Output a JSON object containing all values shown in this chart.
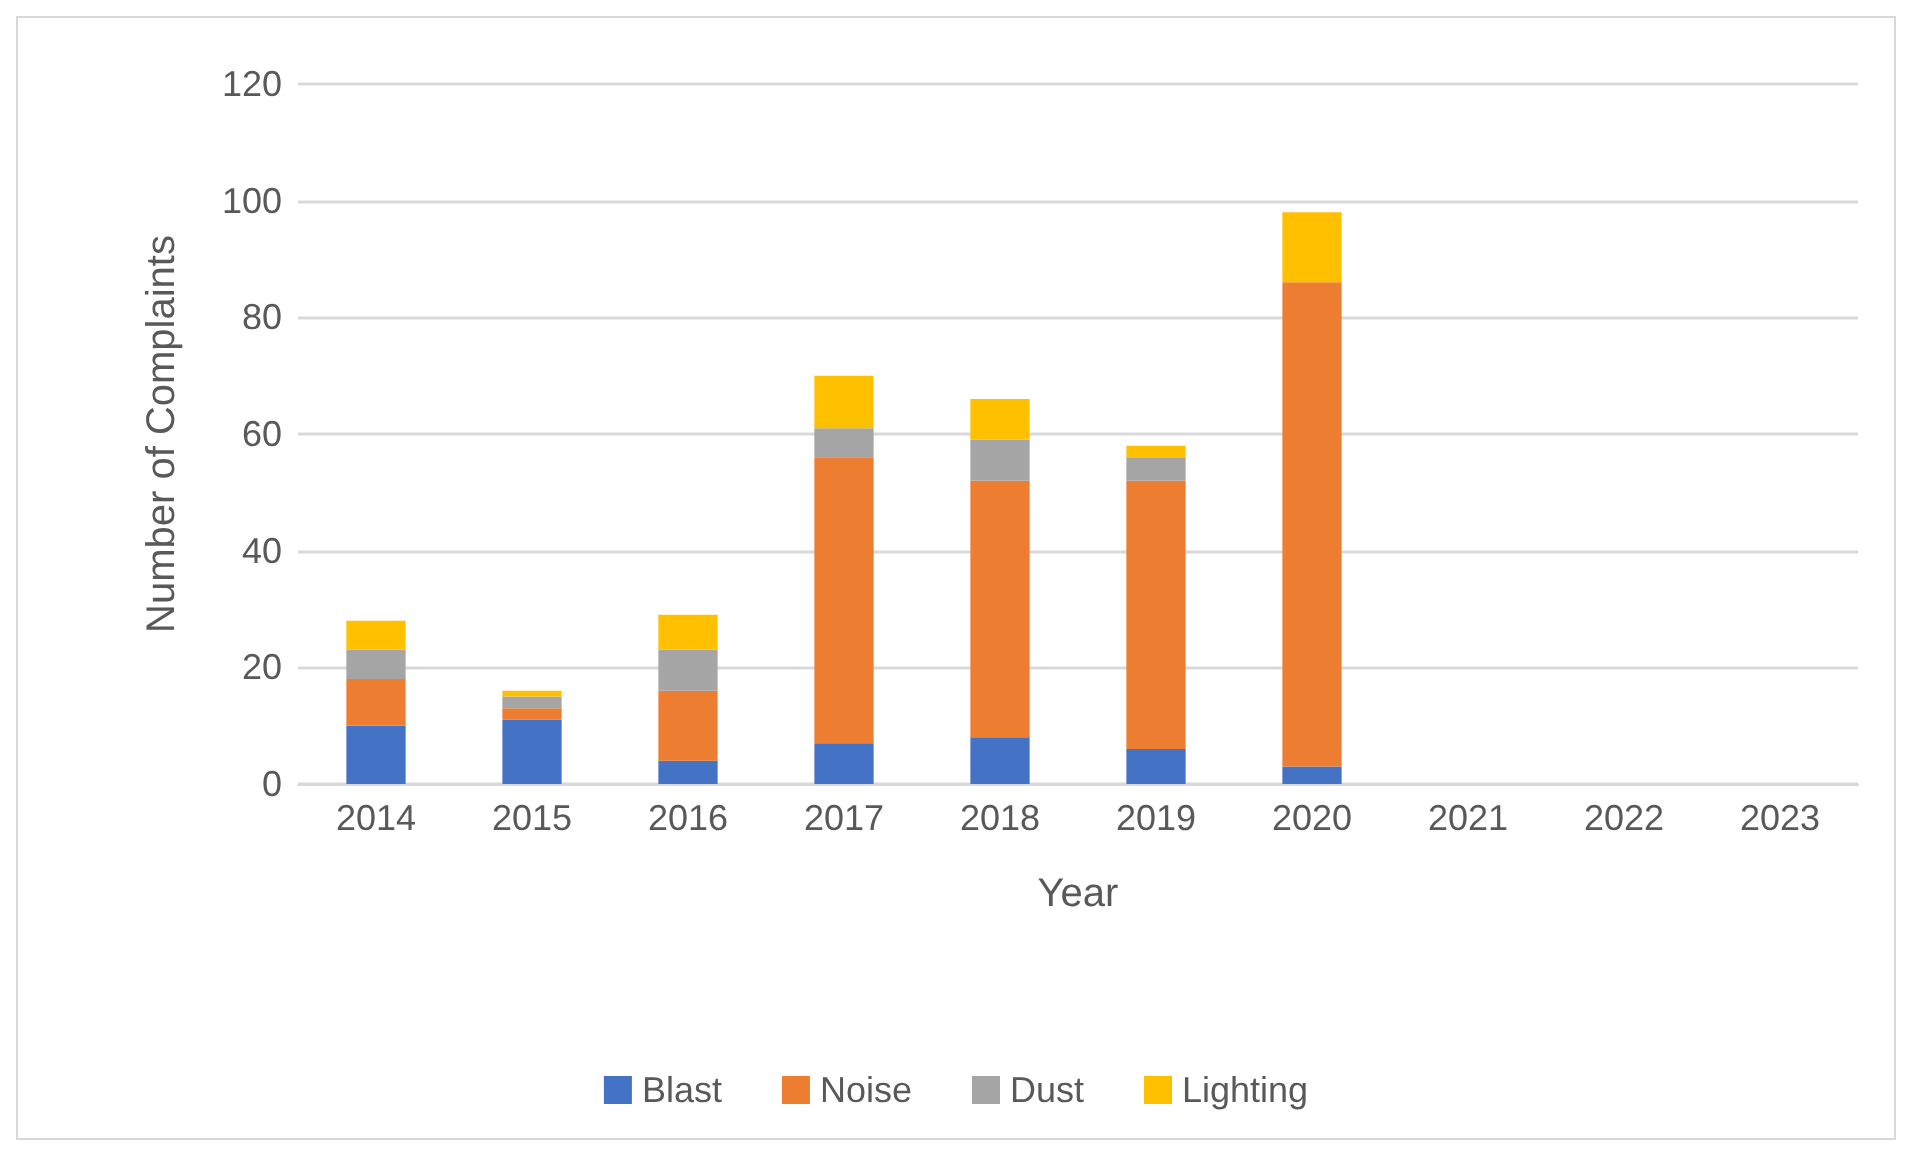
{
  "chart_data": {
    "type": "bar",
    "stacked": true,
    "xlabel": "Year",
    "ylabel": "Number of Complaints",
    "categories": [
      "2014",
      "2015",
      "2016",
      "2017",
      "2018",
      "2019",
      "2020",
      "2021",
      "2022",
      "2023"
    ],
    "series": [
      {
        "name": "Blast",
        "color": "#4472c4",
        "values": [
          10,
          11,
          4,
          7,
          8,
          6,
          3,
          null,
          null,
          null
        ]
      },
      {
        "name": "Noise",
        "color": "#ed7d31",
        "values": [
          8,
          2,
          12,
          49,
          44,
          46,
          83,
          null,
          null,
          null
        ]
      },
      {
        "name": "Dust",
        "color": "#a5a5a5",
        "values": [
          5,
          2,
          7,
          5,
          7,
          4,
          0,
          null,
          null,
          null
        ]
      },
      {
        "name": "Lighting",
        "color": "#ffc000",
        "values": [
          5,
          1,
          6,
          9,
          7,
          2,
          12,
          null,
          null,
          null
        ]
      }
    ],
    "ylim": [
      0,
      120
    ],
    "yticks": [
      0,
      20,
      40,
      60,
      80,
      100,
      120
    ],
    "grid": "y",
    "legend": "bottom"
  }
}
